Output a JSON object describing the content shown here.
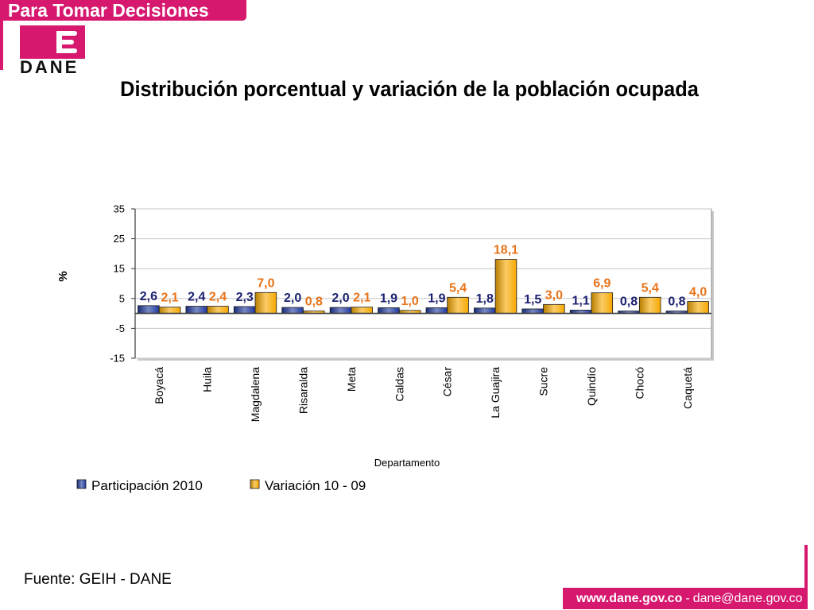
{
  "header": {
    "banner": "Para Tomar Decisiones",
    "logo_text": "DANE"
  },
  "colors": {
    "brand": "#d6186f",
    "participacion": "#1f3a9e",
    "variacion": "#f6a800",
    "participacion_label": "#1c2170",
    "variacion_label": "#e8741b"
  },
  "chart_data": {
    "type": "bar",
    "title": "Distribución porcentual y variación de la población ocupada",
    "xlabel": "Departamento",
    "ylabel": "%",
    "categories": [
      "Boyacá",
      "Huila",
      "Magdalena",
      "Risaralda",
      "Meta",
      "Caldas",
      "César",
      "La Guajira",
      "Sucre",
      "Quindío",
      "Chocó",
      "Caquetá"
    ],
    "series": [
      {
        "name": "Participación 2010",
        "values": [
          2.6,
          2.4,
          2.3,
          2.0,
          2.0,
          1.9,
          1.9,
          1.8,
          1.5,
          1.1,
          0.8,
          0.8
        ]
      },
      {
        "name": "Variación 10 - 09",
        "values": [
          2.1,
          2.4,
          7.0,
          0.8,
          2.1,
          1.0,
          5.4,
          18.1,
          3.0,
          6.9,
          5.4,
          4.0
        ]
      }
    ],
    "ylim": [
      -15,
      35
    ],
    "yticks": [
      35,
      25,
      15,
      5,
      -5,
      -15
    ],
    "grid": true,
    "data_labels": true,
    "legend": "bottom-left"
  },
  "footer": {
    "source": "Fuente: GEIH - DANE",
    "website": "www.dane.gov.co",
    "separator": "-",
    "email": "dane@dane.gov.co"
  }
}
